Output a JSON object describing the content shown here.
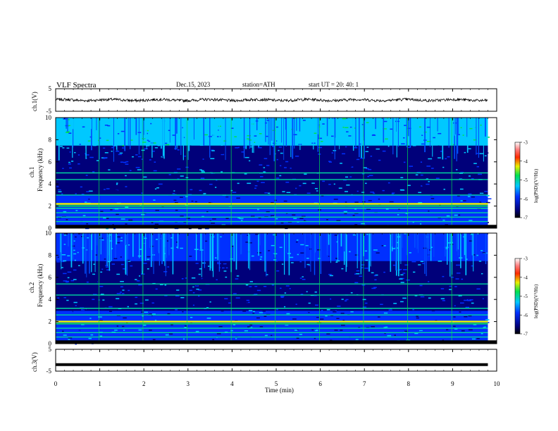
{
  "header": {
    "title": "VLF  Spectra",
    "date": "Dec.15, 2023",
    "station": "station=ATH",
    "start_ut": "start  UT  =    20: 40: 1"
  },
  "chart_data": [
    {
      "type": "line",
      "name": "ch1-waveform",
      "ylabel": "ch.1(V)",
      "ylim": [
        -5,
        5
      ],
      "yticks": [
        "5",
        "-5"
      ],
      "xlim": [
        0,
        10
      ],
      "trace_level": 0,
      "trace_amplitude": 1.2,
      "trace_end": 9.8
    },
    {
      "type": "heatmap",
      "name": "ch1-spectrogram",
      "ylabel": "ch.1\nFrequency (kHz)",
      "ylabel_lines": [
        "ch.1",
        "Frequency (kHz)"
      ],
      "ylim": [
        0,
        10
      ],
      "yticks": [
        "0",
        "2",
        "4",
        "6",
        "8",
        "10"
      ],
      "xlim": [
        0,
        10
      ],
      "data_end": 9.8,
      "colorbar": {
        "label": "log(PSD)(V²/Hz)",
        "range": [
          -7,
          -3
        ],
        "ticks": [
          "-3",
          "-4",
          "-5",
          "-6",
          "-7"
        ]
      },
      "bands_khz": [
        0.2,
        0.6,
        1.0,
        1.4,
        1.8,
        2.2,
        3.0,
        4.4,
        5.0
      ],
      "strong_band_khz": 2.2
    },
    {
      "type": "heatmap",
      "name": "ch2-spectrogram",
      "ylabel": "ch.2\nFrequency (kHz)",
      "ylabel_lines": [
        "ch.2",
        "Frequency (kHz)"
      ],
      "ylim": [
        0,
        10
      ],
      "yticks": [
        "0",
        "2",
        "4",
        "6",
        "8",
        "10"
      ],
      "xlim": [
        0,
        10
      ],
      "data_end": 9.8,
      "colorbar": {
        "label": "log(PSD)(V²/Hz)",
        "range": [
          -7,
          -3
        ],
        "ticks": [
          "-3",
          "-4",
          "-5",
          "-6",
          "-7"
        ]
      },
      "bands_khz": [
        0.6,
        1.0,
        1.4,
        2.0,
        2.6,
        3.2,
        4.4,
        5.4
      ],
      "strong_band_khz": 2.0
    },
    {
      "type": "line",
      "name": "ch3-waveform",
      "ylabel": "ch.3(V)",
      "ylim": [
        -5,
        5
      ],
      "yticks": [
        "5",
        "-5"
      ],
      "xlim": [
        0,
        10
      ],
      "trace_level": -2,
      "trace_amplitude": 0,
      "trace_end": 9.8
    }
  ],
  "xaxis": {
    "label": "Time  (min)",
    "ticks": [
      "0",
      "1",
      "2",
      "3",
      "4",
      "5",
      "6",
      "7",
      "8",
      "9",
      "10"
    ]
  }
}
